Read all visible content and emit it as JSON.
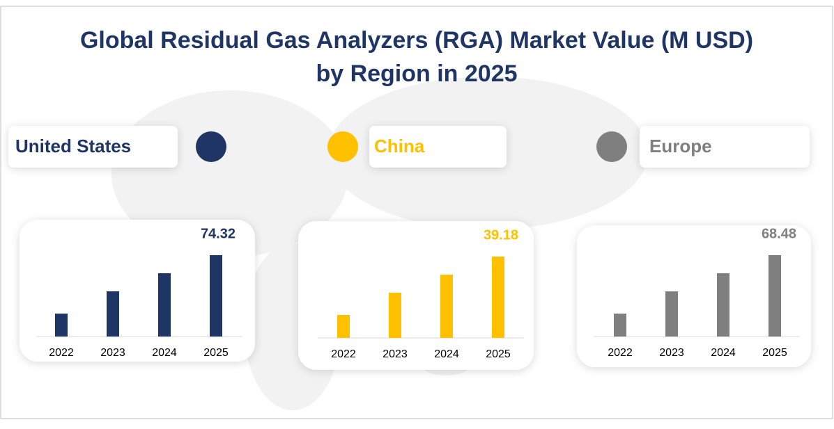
{
  "title": "Global Residual Gas Analyzers (RGA) Market Value (M USD)",
  "subtitle": "by Region in 2025",
  "chart_data": [
    {
      "type": "bar",
      "title": "United States",
      "color": "#1f3566",
      "categories": [
        "2022",
        "2023",
        "2024",
        "2025"
      ],
      "values": [
        20.96,
        41.3,
        57.8,
        74.32
      ]
    },
    {
      "type": "bar",
      "title": "China",
      "color": "#ffc000",
      "categories": [
        "2022",
        "2023",
        "2024",
        "2025"
      ],
      "values": [
        11.05,
        21.77,
        30.47,
        39.18
      ]
    },
    {
      "type": "bar",
      "title": "Europe",
      "color": "#7f7f7f",
      "categories": [
        "2022",
        "2023",
        "2024",
        "2025"
      ],
      "values": [
        19.3,
        38.0,
        53.3,
        68.48
      ]
    }
  ]
}
